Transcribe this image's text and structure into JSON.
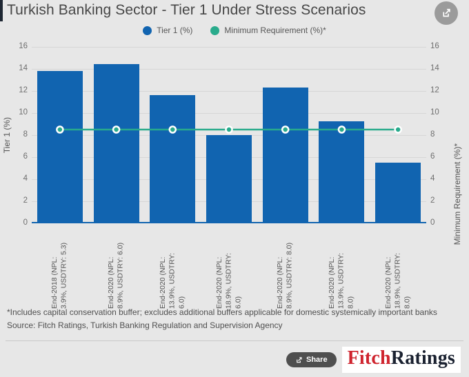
{
  "header": {
    "title": "Turkish Banking Sector - Tier 1 Under Stress Scenarios"
  },
  "chart_data": {
    "type": "bar",
    "title": "Turkish Banking Sector - Tier 1 Under Stress Scenarios",
    "categories": [
      "End-2018 (NPL: 3.9%, USDTRY: 5.3)",
      "End-2020 (NPL: 8.9%, USDTRY: 6.0)",
      "End-2020 (NPL: 13.9%, USDTRY: 6.0)",
      "End-2020 (NPL: 18.9%, USDTRY: 6.0)",
      "End-2020 (NPL: 8.9%, USDTRY: 8.0)",
      "End-2020 (NPL: 13.9%, USDTRY: 8.0)",
      "End-2020 (NPL: 18.9%, USDTRY: 8.0)"
    ],
    "category_lines": [
      [
        "End-2018 (NPL:",
        "3.9%, USDTRY: 5.3)"
      ],
      [
        "End-2020 (NPL:",
        "8.9%, USDTRY: 6.0)"
      ],
      [
        "End-2020 (NPL:",
        "13.9%, USDTRY:",
        "6.0)"
      ],
      [
        "End-2020 (NPL:",
        "18.9%, USDTRY:",
        "6.0)"
      ],
      [
        "End-2020 (NPL:",
        "8.9%, USDTRY: 8.0)"
      ],
      [
        "End-2020 (NPL:",
        "13.9%, USDTRY:",
        "8.0)"
      ],
      [
        "End-2020 (NPL:",
        "18.9%, USDTRY:",
        "8.0)"
      ]
    ],
    "series": [
      {
        "name": "Tier 1 (%)",
        "type": "bar",
        "color": "#1164b0",
        "values": [
          13.7,
          14.3,
          11.5,
          7.9,
          12.2,
          9.1,
          5.4
        ]
      },
      {
        "name": "Minimum Requirement (%)*",
        "type": "line",
        "color": "#29ab8c",
        "values": [
          8.5,
          8.5,
          8.5,
          8.5,
          8.5,
          8.5,
          8.5
        ]
      }
    ],
    "ylabel_left": "Tier 1 (%)",
    "ylabel_right": "Minimum Requirement (%)*",
    "ylim": [
      0,
      16
    ],
    "ytick_step": 2,
    "yticks": [
      0,
      2,
      4,
      6,
      8,
      10,
      12,
      14,
      16
    ],
    "grid": true,
    "legend_position": "top-center"
  },
  "footnotes": {
    "note": "*Includes capital conservation buffer; excludes additional buffers applicable for domestic systemically important banks",
    "source": "Source: Fitch Ratings, Turkish Banking Regulation and Supervision Agency"
  },
  "footer": {
    "share_label": "Share",
    "logo": {
      "part1": "Fitch",
      "part2": "Ratings",
      "part1_color": "#cf242e",
      "part2_color": "#1a2130"
    }
  }
}
